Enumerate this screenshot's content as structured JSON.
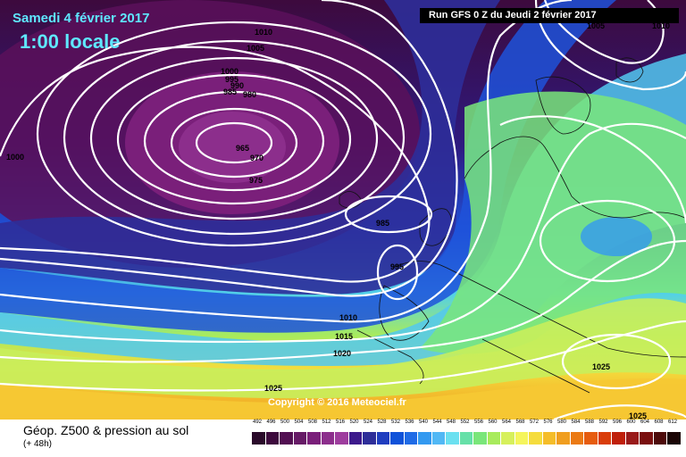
{
  "header": {
    "date": "Samedi 4 février 2017",
    "time": "1:00 locale",
    "run": "Run GFS 0 Z du Jeudi 2 février 2017"
  },
  "copyright": "Copyright © 2016 Meteociel.fr",
  "footer": {
    "title": "Géop. Z500 & pression au sol",
    "subtitle": "(+ 48h)"
  },
  "legend": {
    "labels": [
      "492",
      "496",
      "500",
      "504",
      "508",
      "512",
      "516",
      "520",
      "524",
      "528",
      "532",
      "536",
      "540",
      "544",
      "548",
      "552",
      "556",
      "560",
      "564",
      "568",
      "572",
      "576",
      "580",
      "584",
      "588",
      "592",
      "596",
      "600",
      "604",
      "608",
      "612"
    ],
    "colors": [
      "#2a0a2a",
      "#3d0a3d",
      "#520f52",
      "#661a66",
      "#7a1f7a",
      "#8c2e8c",
      "#9e3d9e",
      "#3d1a8c",
      "#2e2e99",
      "#1f3dbf",
      "#0f52d9",
      "#1f6be6",
      "#3399f0",
      "#52b8f5",
      "#6be0f0",
      "#66e0a8",
      "#7ae67a",
      "#a8eb5c",
      "#d6f05c",
      "#f5f55c",
      "#f5dc3d",
      "#f5bd29",
      "#f09e1f",
      "#eb7a14",
      "#e65c0f",
      "#d93d0a",
      "#bf1f0a",
      "#991a1a",
      "#7a0f0f",
      "#4d0a0a",
      "#1a0505"
    ]
  },
  "isobar_labels": [
    "1010",
    "1005",
    "1000",
    "995",
    "990",
    "985",
    "980",
    "965",
    "970",
    "975",
    "1000",
    "985",
    "995",
    "1010",
    "1015",
    "1020",
    "1025",
    "1025",
    "1025",
    "1005",
    "1010"
  ]
}
